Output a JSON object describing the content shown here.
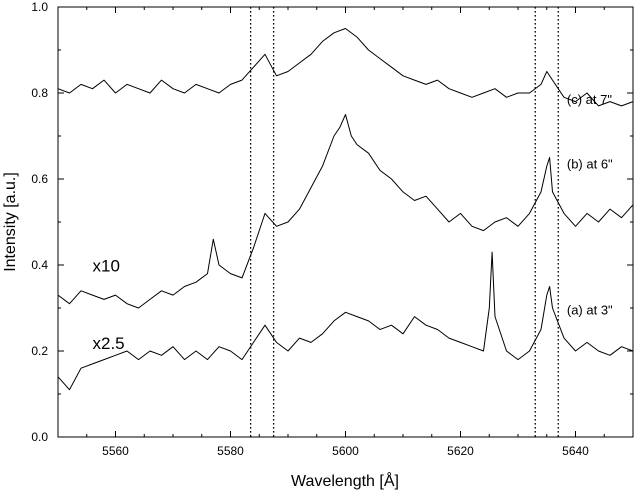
{
  "chart_data": {
    "type": "line",
    "title": "",
    "xlabel": "Wavelength [Å]",
    "ylabel": "Intensity [a.u.]",
    "xlim": [
      5550,
      5650
    ],
    "ylim": [
      0.0,
      1.0
    ],
    "x_ticks": [
      5560,
      5580,
      5600,
      5620,
      5640
    ],
    "y_ticks": [
      0.0,
      0.2,
      0.4,
      0.6,
      0.8,
      1.0
    ],
    "x_tick_labels": [
      "5560",
      "5580",
      "5600",
      "5620",
      "5640"
    ],
    "y_tick_labels": [
      "0.0",
      "0.2",
      "0.4",
      "0.6",
      "0.8",
      "1.0"
    ],
    "grid": false,
    "line_color": "#000000",
    "reference_lines_x": [
      5583.5,
      5587.5,
      5633.0,
      5637.0
    ],
    "annotations": [
      {
        "text": "x10",
        "x": 5556,
        "y": 0.385
      },
      {
        "text": "x2.5",
        "x": 5556,
        "y": 0.205
      }
    ],
    "series": [
      {
        "name": "(a) at 3\"",
        "label_x": 5638.5,
        "label_y": 0.285,
        "x": [
          5550,
          5552,
          5554,
          5556,
          5558,
          5560,
          5562,
          5564,
          5566,
          5568,
          5570,
          5572,
          5574,
          5576,
          5578,
          5580,
          5582,
          5584,
          5586,
          5588,
          5590,
          5592,
          5594,
          5596,
          5598,
          5600,
          5602,
          5604,
          5606,
          5608,
          5610,
          5612,
          5614,
          5616,
          5618,
          5620,
          5622,
          5624,
          5625,
          5625.5,
          5626,
          5628,
          5630,
          5632,
          5634,
          5635,
          5635.5,
          5636,
          5638,
          5640,
          5642,
          5644,
          5646,
          5648,
          5650
        ],
        "values": [
          0.14,
          0.11,
          0.16,
          0.17,
          0.18,
          0.19,
          0.2,
          0.18,
          0.2,
          0.19,
          0.21,
          0.18,
          0.2,
          0.18,
          0.21,
          0.2,
          0.18,
          0.22,
          0.26,
          0.22,
          0.2,
          0.23,
          0.22,
          0.24,
          0.27,
          0.29,
          0.28,
          0.27,
          0.25,
          0.26,
          0.24,
          0.28,
          0.26,
          0.25,
          0.23,
          0.22,
          0.21,
          0.2,
          0.3,
          0.43,
          0.28,
          0.2,
          0.18,
          0.2,
          0.25,
          0.33,
          0.35,
          0.3,
          0.23,
          0.2,
          0.22,
          0.2,
          0.19,
          0.21,
          0.2
        ]
      },
      {
        "name": "(b) at 6\"",
        "label_x": 5638.5,
        "label_y": 0.625,
        "x": [
          5550,
          5552,
          5554,
          5556,
          5558,
          5560,
          5562,
          5564,
          5566,
          5568,
          5570,
          5572,
          5574,
          5576,
          5577,
          5578,
          5580,
          5582,
          5584,
          5586,
          5588,
          5590,
          5592,
          5594,
          5596,
          5598,
          5599,
          5600,
          5601,
          5602,
          5604,
          5606,
          5608,
          5610,
          5612,
          5614,
          5616,
          5618,
          5620,
          5622,
          5624,
          5626,
          5628,
          5630,
          5632,
          5634,
          5635,
          5635.5,
          5636,
          5638,
          5640,
          5642,
          5644,
          5646,
          5648,
          5650
        ],
        "values": [
          0.33,
          0.31,
          0.34,
          0.33,
          0.32,
          0.33,
          0.31,
          0.3,
          0.32,
          0.34,
          0.33,
          0.35,
          0.36,
          0.38,
          0.46,
          0.4,
          0.38,
          0.37,
          0.44,
          0.52,
          0.49,
          0.5,
          0.53,
          0.58,
          0.63,
          0.7,
          0.72,
          0.75,
          0.7,
          0.68,
          0.66,
          0.62,
          0.6,
          0.57,
          0.55,
          0.56,
          0.53,
          0.5,
          0.52,
          0.49,
          0.48,
          0.5,
          0.51,
          0.49,
          0.52,
          0.57,
          0.63,
          0.65,
          0.57,
          0.52,
          0.49,
          0.52,
          0.5,
          0.53,
          0.51,
          0.54
        ]
      },
      {
        "name": "(c) at 7\"",
        "label_x": 5638.5,
        "label_y": 0.775,
        "x": [
          5550,
          5552,
          5554,
          5556,
          5558,
          5560,
          5562,
          5564,
          5566,
          5568,
          5570,
          5572,
          5574,
          5576,
          5578,
          5580,
          5582,
          5584,
          5586,
          5588,
          5590,
          5592,
          5594,
          5596,
          5598,
          5600,
          5602,
          5604,
          5606,
          5608,
          5610,
          5612,
          5614,
          5616,
          5618,
          5620,
          5622,
          5624,
          5626,
          5628,
          5630,
          5632,
          5634,
          5635,
          5636,
          5638,
          5640,
          5642,
          5644,
          5646,
          5648,
          5650
        ],
        "values": [
          0.81,
          0.8,
          0.82,
          0.81,
          0.83,
          0.8,
          0.82,
          0.81,
          0.8,
          0.83,
          0.81,
          0.8,
          0.82,
          0.81,
          0.8,
          0.82,
          0.83,
          0.86,
          0.89,
          0.84,
          0.85,
          0.87,
          0.89,
          0.92,
          0.94,
          0.95,
          0.93,
          0.9,
          0.88,
          0.86,
          0.84,
          0.83,
          0.82,
          0.83,
          0.81,
          0.8,
          0.79,
          0.8,
          0.81,
          0.79,
          0.8,
          0.8,
          0.82,
          0.85,
          0.83,
          0.79,
          0.78,
          0.8,
          0.77,
          0.78,
          0.77,
          0.78
        ]
      }
    ]
  }
}
